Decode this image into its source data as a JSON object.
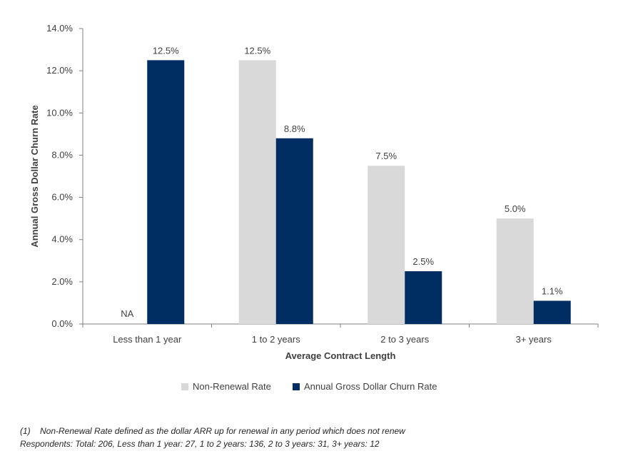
{
  "chart_data": {
    "type": "bar",
    "categories": [
      "Less than 1 year",
      "1 to 2 years",
      "2 to 3 years",
      "3+ years"
    ],
    "series": [
      {
        "name": "Non-Renewal Rate",
        "values": [
          null,
          12.5,
          7.5,
          5.0
        ],
        "labels": [
          "NA",
          "12.5%",
          "7.5%",
          "5.0%"
        ],
        "color": "#d9d9d9"
      },
      {
        "name": "Annual Gross Dollar Churn Rate",
        "values": [
          12.5,
          8.8,
          2.5,
          1.1
        ],
        "labels": [
          "12.5%",
          "8.8%",
          "2.5%",
          "1.1%"
        ],
        "color": "#002d62"
      }
    ],
    "xlabel": "Average Contract Length",
    "ylabel": "Annual Gross Dollar Churn Rate",
    "ylim": [
      0,
      14
    ],
    "yticks": [
      "0.0%",
      "2.0%",
      "4.0%",
      "6.0%",
      "8.0%",
      "10.0%",
      "12.0%",
      "14.0%"
    ],
    "ytick_values": [
      0,
      2,
      4,
      6,
      8,
      10,
      12,
      14
    ],
    "grid": false,
    "legend_position": "bottom"
  },
  "footnotes": {
    "line1": "(1)    Non-Renewal Rate defined as the dollar ARR up for renewal in any period which does not renew",
    "line2": "Respondents: Total: 206, Less than 1 year: 27, 1 to 2 years: 136, 2 to 3 years: 31, 3+ years: 12"
  }
}
